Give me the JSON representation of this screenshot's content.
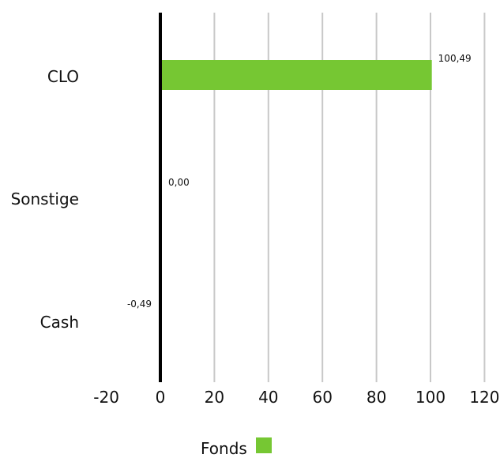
{
  "chart_data": {
    "type": "bar",
    "orientation": "horizontal",
    "categories": [
      "CLO",
      "Sonstige",
      "Cash"
    ],
    "series": [
      {
        "name": "Fonds",
        "values": [
          100.49,
          0.0,
          -0.49
        ],
        "labels": [
          "100,49",
          "0,00",
          "-0,49"
        ],
        "color": "#76c733"
      }
    ],
    "xlim": [
      -20,
      120
    ],
    "xticks": [
      -20,
      0,
      20,
      40,
      60,
      80,
      100,
      120
    ],
    "xtick_labels": [
      "-20",
      "0",
      "20",
      "40",
      "60",
      "80",
      "100",
      "120"
    ],
    "grid": true,
    "grid_color": "#c8c8c8",
    "zero_line_color": "#000000",
    "legend_position": "bottom"
  },
  "legend": {
    "label": "Fonds",
    "color": "#76c733"
  }
}
